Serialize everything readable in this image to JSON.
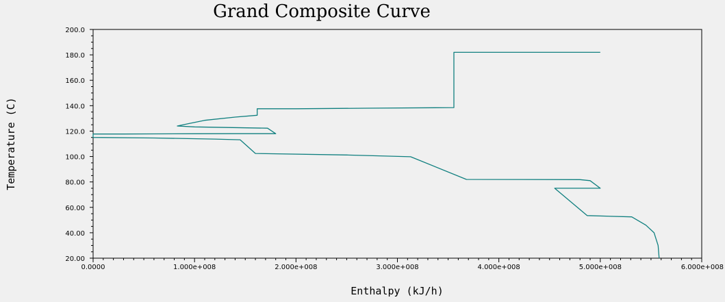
{
  "chart_data": {
    "type": "line",
    "title": "Grand Composite Curve",
    "xlabel": "Enthalpy (kJ/h)",
    "ylabel": "Temperature (C)",
    "xlim": [
      0,
      600000000
    ],
    "ylim": [
      20,
      200
    ],
    "grid": false,
    "x_ticks": [
      {
        "value": 0,
        "label": "0.0000"
      },
      {
        "value": 100000000,
        "label": "1.000e+008"
      },
      {
        "value": 200000000,
        "label": "2.000e+008"
      },
      {
        "value": 300000000,
        "label": "3.000e+008"
      },
      {
        "value": 400000000,
        "label": "4.000e+008"
      },
      {
        "value": 500000000,
        "label": "5.000e+008"
      },
      {
        "value": 600000000,
        "label": "6.000e+008"
      }
    ],
    "y_ticks": [
      {
        "value": 20,
        "label": "20.00"
      },
      {
        "value": 40,
        "label": "40.00"
      },
      {
        "value": 60,
        "label": "60.00"
      },
      {
        "value": 80,
        "label": "80.00"
      },
      {
        "value": 100,
        "label": "100.0"
      },
      {
        "value": 120,
        "label": "120.0"
      },
      {
        "value": 140,
        "label": "140.0"
      },
      {
        "value": 160,
        "label": "160.0"
      },
      {
        "value": 180,
        "label": "180.0"
      },
      {
        "value": 200,
        "label": "200.0"
      }
    ],
    "line_color": "#0f7f7f",
    "series": [
      {
        "points": [
          [
            500000000,
            182.0
          ],
          [
            355700000,
            182.0
          ],
          [
            355700000,
            138.5
          ],
          [
            270000000,
            138.0
          ],
          [
            200000000,
            137.6
          ],
          [
            161800000,
            137.6
          ],
          [
            161800000,
            132.5
          ],
          [
            140000000,
            131.0
          ],
          [
            110000000,
            128.5
          ],
          [
            95000000,
            126.0
          ],
          [
            83000000,
            124.0
          ],
          [
            100000000,
            123.3
          ],
          [
            172000000,
            122.3
          ],
          [
            180000000,
            118.0
          ],
          [
            140000000,
            118.0
          ],
          [
            100000000,
            117.9
          ],
          [
            60000000,
            117.8
          ],
          [
            30000000,
            117.7
          ],
          [
            0,
            117.7
          ],
          [
            0,
            115.0
          ],
          [
            60000000,
            114.6
          ],
          [
            120000000,
            113.7
          ],
          [
            145000000,
            113.2
          ],
          [
            160000000,
            102.4
          ],
          [
            250000000,
            101.2
          ],
          [
            313000000,
            99.8
          ],
          [
            368000000,
            82.0
          ],
          [
            480000000,
            81.8
          ],
          [
            490000000,
            81.0
          ],
          [
            500000000,
            75.0
          ],
          [
            455000000,
            75.0
          ],
          [
            487000000,
            53.5
          ],
          [
            531000000,
            52.5
          ],
          [
            545000000,
            46.0
          ],
          [
            553000000,
            40.0
          ],
          [
            557000000,
            30.0
          ],
          [
            558000000,
            20.0
          ]
        ]
      }
    ]
  }
}
